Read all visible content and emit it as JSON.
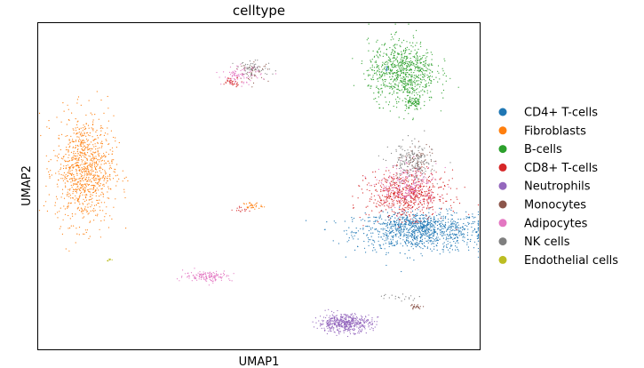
{
  "chart_data": {
    "type": "scatter",
    "title": "celltype",
    "xlabel": "UMAP1",
    "ylabel": "UMAP2",
    "xlim": [
      0,
      100
    ],
    "ylim": [
      0,
      100
    ],
    "show_ticks": false,
    "grid": false,
    "legend_position": "right-outside",
    "series": [
      {
        "name": "CD4+ T-cells",
        "color": "#1f77b4",
        "clusters": [
          {
            "cx": 86.5,
            "cy": 36,
            "rx": 13.5,
            "ry": 5.5,
            "n": 900
          },
          {
            "cx": 86,
            "cy": 38.5,
            "rx": 9,
            "ry": 3,
            "n": 200
          },
          {
            "cx": 79,
            "cy": 86,
            "rx": 0.3,
            "ry": 0.6,
            "n": 8
          }
        ]
      },
      {
        "name": "Fibroblasts",
        "color": "#ff7f0e",
        "clusters": [
          {
            "cx": 10.5,
            "cy": 55,
            "rx": 6,
            "ry": 15,
            "n": 950
          },
          {
            "cx": 48.5,
            "cy": 44,
            "rx": 2,
            "ry": 1,
            "n": 35
          }
        ]
      },
      {
        "name": "B-cells",
        "color": "#2ca02c",
        "clusters": [
          {
            "cx": 82.5,
            "cy": 85,
            "rx": 7,
            "ry": 8.5,
            "n": 800
          },
          {
            "cx": 85,
            "cy": 75.5,
            "rx": 2,
            "ry": 2,
            "n": 80
          }
        ]
      },
      {
        "name": "CD8+ T-cells",
        "color": "#d62728",
        "clusters": [
          {
            "cx": 83.5,
            "cy": 47.5,
            "rx": 8,
            "ry": 6.5,
            "n": 650
          },
          {
            "cx": 44,
            "cy": 82,
            "rx": 2,
            "ry": 1.2,
            "n": 40
          },
          {
            "cx": 46,
            "cy": 43,
            "rx": 1.5,
            "ry": 0.8,
            "n": 15
          }
        ]
      },
      {
        "name": "Neutrophils",
        "color": "#9467bd",
        "clusters": [
          {
            "cx": 69.5,
            "cy": 8,
            "rx": 5.5,
            "ry": 2.5,
            "n": 500
          }
        ]
      },
      {
        "name": "Monocytes",
        "color": "#8c564b",
        "clusters": [
          {
            "cx": 86,
            "cy": 58,
            "rx": 3.5,
            "ry": 5,
            "n": 60
          },
          {
            "cx": 49,
            "cy": 85,
            "rx": 3,
            "ry": 2.5,
            "n": 40
          },
          {
            "cx": 85.5,
            "cy": 13,
            "rx": 1.5,
            "ry": 0.7,
            "n": 25
          }
        ]
      },
      {
        "name": "Adipocytes",
        "color": "#e377c2",
        "clusters": [
          {
            "cx": 38.5,
            "cy": 22.5,
            "rx": 5,
            "ry": 1.5,
            "n": 140
          },
          {
            "cx": 84,
            "cy": 50,
            "rx": 6,
            "ry": 6,
            "n": 220
          },
          {
            "cx": 46,
            "cy": 84,
            "rx": 4,
            "ry": 2.5,
            "n": 90
          }
        ]
      },
      {
        "name": "NK cells",
        "color": "#7f7f7f",
        "clusters": [
          {
            "cx": 84.5,
            "cy": 57,
            "rx": 4.5,
            "ry": 5.5,
            "n": 200
          },
          {
            "cx": 49,
            "cy": 86,
            "rx": 4,
            "ry": 2,
            "n": 60
          },
          {
            "cx": 82,
            "cy": 16,
            "rx": 4,
            "ry": 1,
            "n": 20
          }
        ]
      },
      {
        "name": "Endothelial cells",
        "color": "#bcbd22",
        "clusters": [
          {
            "cx": 16,
            "cy": 27.5,
            "rx": 0.6,
            "ry": 0.4,
            "n": 8
          }
        ]
      }
    ]
  }
}
